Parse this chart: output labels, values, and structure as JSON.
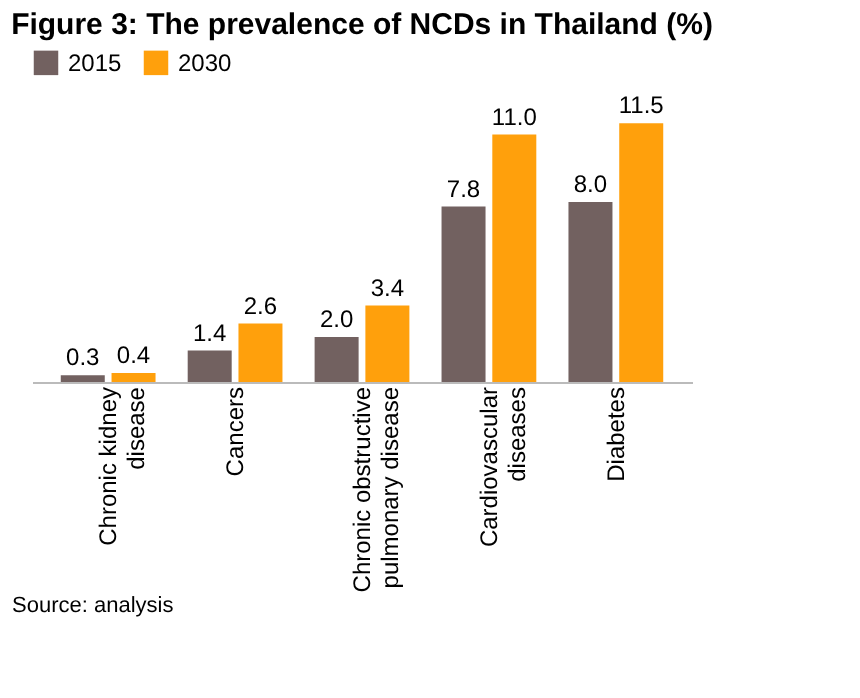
{
  "chart_data": {
    "type": "bar",
    "title": "Figure 3: The prevalence of NCDs in Thailand (%)",
    "categories": [
      "Chronic kidney disease",
      "Cancers",
      "Chronic obstructive pulmonary disease",
      "Cardiovascular diseases",
      "Diabetes"
    ],
    "series": [
      {
        "name": "2015",
        "color": "#726160",
        "values": [
          0.3,
          1.4,
          2.0,
          7.8,
          8.0
        ],
        "value_labels": [
          "0.3",
          "1.4",
          "2.0",
          "7.8",
          "8.0"
        ]
      },
      {
        "name": "2030",
        "color": "#ffa00c",
        "values": [
          0.4,
          2.6,
          3.4,
          11.0,
          11.5
        ],
        "value_labels": [
          "0.4",
          "2.6",
          "3.4",
          "11.0",
          "11.5"
        ]
      }
    ],
    "legend": "top left",
    "grid": false,
    "tick_labels": "x",
    "annotations": [
      "Source: analysis"
    ]
  }
}
